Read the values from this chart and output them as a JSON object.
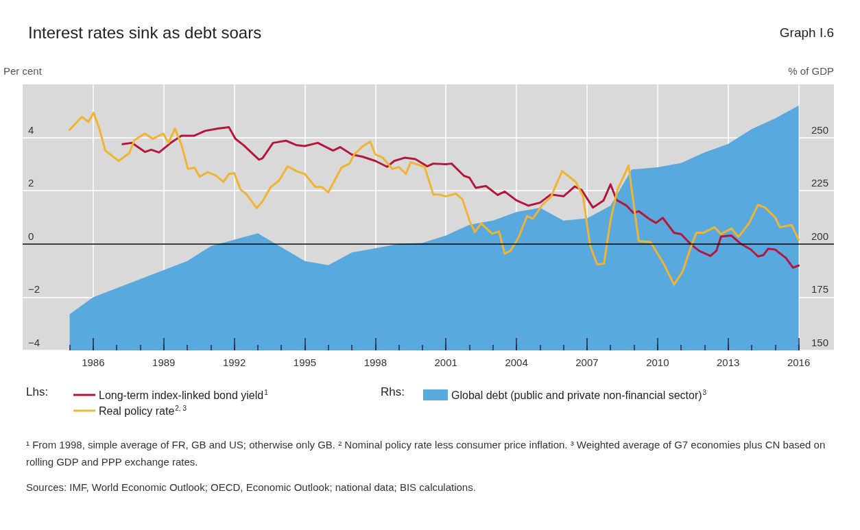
{
  "chart_data": {
    "type": "line",
    "title": "Interest rates sink as debt soars",
    "ylabel": "Per cent",
    "y2label": "% of GDP",
    "xlim": [
      1983,
      2017.5
    ],
    "xticks": [
      {
        "value": 1985,
        "label": null
      },
      1986,
      {
        "value": 1987,
        "label": null
      },
      {
        "value": 1988,
        "label": null
      },
      1989,
      {
        "value": 1990,
        "label": null
      },
      {
        "value": 1991,
        "label": null
      },
      1992,
      {
        "value": 1993,
        "label": null
      },
      {
        "value": 1994,
        "label": null
      },
      1995,
      {
        "value": 1996,
        "label": null
      },
      {
        "value": 1997,
        "label": null
      },
      1998,
      {
        "value": 1999,
        "label": null
      },
      {
        "value": 2000,
        "label": null
      },
      2001,
      {
        "value": 2002,
        "label": null
      },
      {
        "value": 2003,
        "label": null
      },
      2004,
      {
        "value": 2005,
        "label": null
      },
      {
        "value": 2006,
        "label": null
      },
      2007,
      {
        "value": 2008,
        "label": null
      },
      {
        "value": 2009,
        "label": null
      },
      2010,
      {
        "value": 2011,
        "label": null
      },
      {
        "value": 2012,
        "label": null
      },
      2013,
      {
        "value": 2014,
        "label": null
      },
      {
        "value": 2015,
        "label": null
      },
      2016
    ],
    "ylim": [
      -4,
      6
    ],
    "yticks": [
      -4,
      -2,
      0,
      2,
      4
    ],
    "y2lim": [
      150,
      275
    ],
    "y2ticks": [
      150,
      175,
      200,
      225,
      250
    ],
    "grid": true,
    "legend": "bottom",
    "ref_lines": [
      {
        "axis": "y",
        "value": 0,
        "label": null,
        "color": "#000000"
      }
    ],
    "series": [
      {
        "name": "Global debt (public and private non-financial sector)$^{3}$",
        "type": "area",
        "axis": "y2",
        "color": "#5aa9de",
        "x": [
          1985.0,
          1986.0,
          1990.0,
          1991.0,
          1993.0,
          1995.0,
          1996.0,
          1997.0,
          1998.0,
          1999.0,
          2000.0,
          2001.0,
          2002.0,
          2003.0,
          2004.0,
          2005.0,
          2006.0,
          2007.0,
          2008.0,
          2008.9,
          2010.0,
          2011.0,
          2012.0,
          2013.0,
          2014.0,
          2015.0,
          2016.0
        ],
        "values": [
          167,
          175,
          192,
          199,
          205,
          192,
          190,
          196,
          198,
          200,
          200.5,
          204,
          209,
          211,
          215,
          217,
          211,
          212,
          218,
          235,
          236,
          238,
          243,
          247,
          254,
          259,
          265
        ]
      },
      {
        "name": "Long-term index-linked bond yield$^{1}$",
        "type": "line",
        "color": "#b3173c",
        "x": [
          1987.25,
          1987.64,
          1988.2,
          1988.47,
          1988.8,
          1989.3,
          1989.75,
          1990.3,
          1990.76,
          1991.3,
          1991.77,
          1992.05,
          1992.4,
          1993.05,
          1993.2,
          1993.65,
          1994.2,
          1994.66,
          1995.0,
          1995.55,
          1996.2,
          1996.5,
          1997.0,
          1997.45,
          1998.0,
          1998.5,
          1998.8,
          1999.24,
          1999.7,
          2000.2,
          2000.46,
          2001.0,
          2001.24,
          2001.77,
          2002.0,
          2002.27,
          2002.7,
          2003.2,
          2003.5,
          2003.98,
          2004.5,
          2005.0,
          2005.46,
          2006.0,
          2006.48,
          2006.77,
          2007.25,
          2007.7,
          2008.0,
          2008.26,
          2008.68,
          2008.98,
          2009.2,
          2009.63,
          2009.93,
          2010.22,
          2010.7,
          2011.0,
          2011.4,
          2011.77,
          2012.25,
          2012.5,
          2012.7,
          2013.13,
          2013.55,
          2013.97,
          2014.27,
          2014.5,
          2014.7,
          2015.0,
          2015.46,
          2015.76,
          2016.0
        ],
        "values": [
          3.75,
          3.8,
          3.46,
          3.54,
          3.44,
          3.8,
          4.07,
          4.07,
          4.25,
          4.34,
          4.39,
          3.95,
          3.71,
          3.17,
          3.22,
          3.8,
          3.88,
          3.71,
          3.68,
          3.8,
          3.51,
          3.64,
          3.36,
          3.28,
          3.12,
          2.9,
          3.12,
          3.24,
          3.19,
          2.92,
          3.02,
          3.0,
          3.02,
          2.56,
          2.49,
          2.11,
          2.18,
          1.84,
          1.97,
          1.65,
          1.44,
          1.55,
          1.86,
          1.79,
          2.16,
          2.03,
          1.37,
          1.63,
          2.24,
          1.65,
          1.44,
          1.16,
          1.23,
          0.95,
          0.79,
          0.98,
          0.42,
          0.37,
          0.0,
          -0.26,
          -0.45,
          -0.26,
          0.28,
          0.32,
          0.0,
          -0.21,
          -0.47,
          -0.42,
          -0.18,
          -0.21,
          -0.53,
          -0.89,
          -0.81
        ]
      },
      {
        "name": "Real policy rate$^{2, 3}$",
        "type": "line",
        "color": "#f0b432",
        "x": [
          1985.0,
          1985.52,
          1985.8,
          1986.02,
          1986.25,
          1986.52,
          1987.08,
          1987.53,
          1987.75,
          1988.2,
          1988.53,
          1988.98,
          1989.2,
          1989.48,
          1989.76,
          1990.03,
          1990.31,
          1990.53,
          1990.87,
          1991.2,
          1991.54,
          1991.77,
          1992.0,
          1992.27,
          1992.5,
          1992.95,
          1993.2,
          1993.55,
          1993.9,
          1994.27,
          1994.66,
          1995.0,
          1995.45,
          1995.73,
          1996.0,
          1996.2,
          1996.56,
          1996.9,
          1997.1,
          1997.45,
          1997.78,
          1998.0,
          1998.3,
          1998.73,
          1999.0,
          1999.3,
          1999.5,
          1999.85,
          2000.1,
          2000.46,
          2000.7,
          2001.0,
          2001.42,
          2001.7,
          2002.0,
          2002.23,
          2002.5,
          2002.96,
          2003.26,
          2003.5,
          2003.74,
          2004.1,
          2004.45,
          2004.7,
          2005.1,
          2005.46,
          2005.94,
          2006.53,
          2006.83,
          2007.13,
          2007.43,
          2007.72,
          2008.0,
          2008.3,
          2008.77,
          2008.9,
          2009.2,
          2009.7,
          2010.22,
          2010.7,
          2011.06,
          2011.4,
          2011.65,
          2011.95,
          2012.42,
          2012.7,
          2013.14,
          2013.44,
          2013.9,
          2014.27,
          2014.57,
          2015.0,
          2015.2,
          2015.7,
          2016.0
        ],
        "values": [
          4.29,
          4.78,
          4.59,
          4.93,
          4.36,
          3.51,
          3.12,
          3.41,
          3.9,
          4.15,
          3.95,
          4.15,
          3.8,
          4.34,
          3.71,
          2.82,
          2.87,
          2.53,
          2.7,
          2.58,
          2.33,
          2.63,
          2.66,
          2.04,
          1.89,
          1.35,
          1.6,
          2.14,
          2.38,
          2.92,
          2.73,
          2.63,
          2.14,
          2.14,
          1.94,
          2.28,
          2.87,
          3.02,
          3.36,
          3.66,
          3.85,
          3.36,
          3.25,
          2.82,
          2.89,
          2.63,
          3.07,
          2.97,
          2.89,
          1.86,
          1.86,
          1.79,
          1.89,
          1.68,
          0.89,
          0.45,
          0.77,
          0.39,
          0.47,
          -0.37,
          -0.26,
          0.26,
          1.05,
          0.95,
          1.47,
          1.76,
          2.74,
          2.32,
          1.79,
          -0.05,
          -0.77,
          -0.74,
          0.89,
          2.05,
          2.95,
          2.05,
          0.11,
          0.07,
          -0.68,
          -1.53,
          -1.05,
          -0.16,
          0.42,
          0.42,
          0.63,
          0.37,
          0.58,
          0.26,
          0.79,
          1.47,
          1.37,
          1.0,
          0.63,
          0.71,
          0.16
        ]
      }
    ],
    "annotations": [
      "Graph I.6",
      "Lhs:",
      "Rhs:",
      "¹ From 1998, simple average of FR, GB and US; otherwise only GB.   ² Nominal policy rate less consumer price inflation.   ³ Weighted average of G7 economies plus CN based on rolling GDP and PPP exchange rates.",
      "Sources: IMF, World Economic Outlook; OECD, Economic Outlook; national data; BIS calculations."
    ]
  }
}
